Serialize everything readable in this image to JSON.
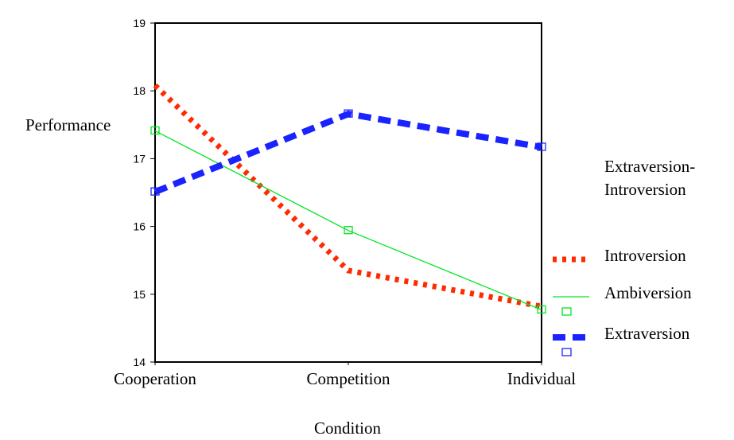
{
  "chart_data": {
    "type": "line",
    "title": "",
    "xlabel": "Condition",
    "ylabel": "Performance",
    "categories": [
      "Cooperation",
      "Competition",
      "Individual"
    ],
    "ylim": [
      14,
      19
    ],
    "yticks": [
      "14",
      "15",
      "16",
      "17",
      "18",
      "19"
    ],
    "grid": false,
    "legend": {
      "title_line1": "Extraversion-",
      "title_line2": "Introversion",
      "placement": "right"
    },
    "series": [
      {
        "name": "Introversion",
        "values": [
          18.08,
          15.35,
          14.82
        ],
        "color": "#ff2a00",
        "style": "dotted-thick"
      },
      {
        "name": "Ambiversion",
        "values": [
          17.41,
          15.94,
          14.77
        ],
        "color": "#00e620",
        "style": "solid-thin"
      },
      {
        "name": "Extraversion",
        "values": [
          16.51,
          17.66,
          17.17
        ],
        "color": "#1a22ff",
        "style": "dashed-thick"
      }
    ]
  }
}
